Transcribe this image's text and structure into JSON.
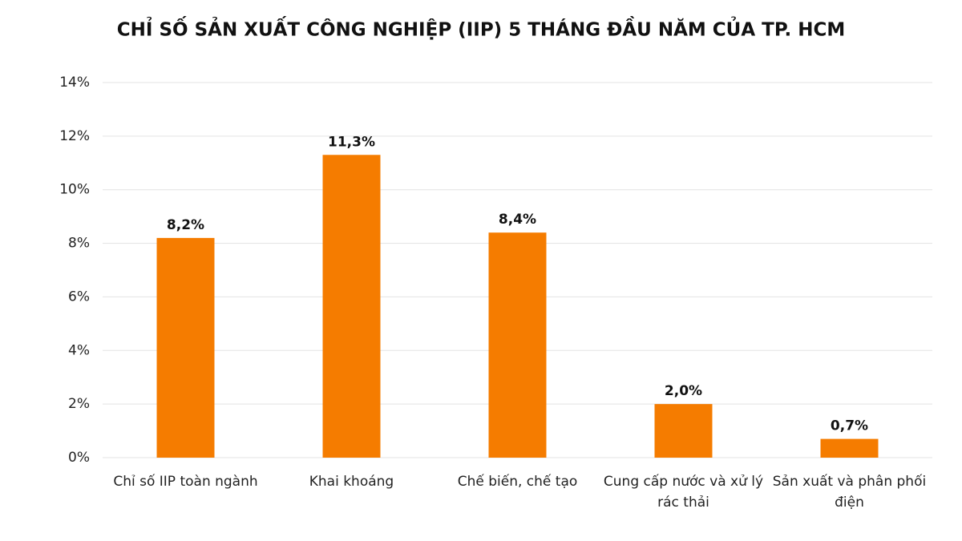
{
  "chart_data": {
    "type": "bar",
    "title": "CHỈ SỐ SẢN XUẤT CÔNG NGHIỆP (IIP) 5 THÁNG ĐẦU NĂM CỦA TP. HCM",
    "categories": [
      "Chỉ số IIP toàn ngành",
      "Khai khoáng",
      "Chế biến, chế tạo",
      "Cung cấp nước và xử lý rác thải",
      "Sản xuất và phân phối điện"
    ],
    "values": [
      8.2,
      11.3,
      8.4,
      2.0,
      0.7
    ],
    "value_labels": [
      "8,2%",
      "11,3%",
      "8,4%",
      "2,0%",
      "0,7%"
    ],
    "color": "#f57c00",
    "ylim": [
      0,
      14
    ],
    "yticks": [
      {
        "value": 0,
        "label": "0%"
      },
      {
        "value": 2,
        "label": "2%"
      },
      {
        "value": 4,
        "label": "4%"
      },
      {
        "value": 6,
        "label": "6%"
      },
      {
        "value": 8,
        "label": "8%"
      },
      {
        "value": 10,
        "label": "10%"
      },
      {
        "value": 12,
        "label": "12%"
      },
      {
        "value": 14,
        "label": "14%"
      }
    ],
    "grid": true
  }
}
